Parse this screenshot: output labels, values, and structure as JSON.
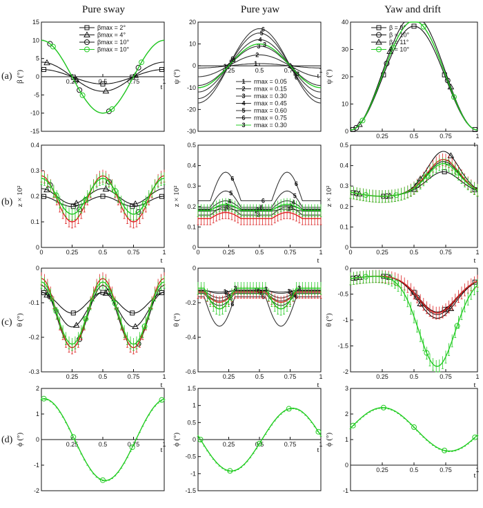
{
  "column_titles": [
    "Pure sway",
    "Pure yaw",
    "Yaw and drift"
  ],
  "row_labels": [
    "(a)",
    "(b)",
    "(c)",
    "(d)"
  ],
  "colors": {
    "black": "#111111",
    "gray": "#555555",
    "green": "#22cc22",
    "red": "#dd2222"
  },
  "chart_data": [
    {
      "id": "a1",
      "type": "line",
      "ylabel": "β (°)",
      "xlabel": "t",
      "xlim": [
        0,
        1
      ],
      "ylim": [
        -15,
        15
      ],
      "xticks": [
        0.25,
        0.5,
        0.75,
        1
      ],
      "yticks": [
        -15,
        -10,
        -5,
        0,
        5,
        10,
        15
      ],
      "legend": [
        "βmax = 2°",
        "βmax = 4°",
        "βmax = 10°",
        "βmax = 10°"
      ],
      "series": [
        {
          "name": "βmax = 2°",
          "marker": "square",
          "color": "#111111",
          "amp": 2,
          "phase": 0
        },
        {
          "name": "βmax = 4°",
          "marker": "triangle",
          "color": "#111111",
          "amp": 4,
          "phase": 0
        },
        {
          "name": "βmax = 10°",
          "marker": "circle",
          "color": "#111111",
          "amp": 10,
          "phase": 0
        },
        {
          "name": "βmax = 10°",
          "marker": "circle",
          "color": "#22cc22",
          "amp": 10,
          "phase": 0
        }
      ]
    },
    {
      "id": "a2",
      "type": "line",
      "ylabel": "ψ (°)",
      "xlabel": "t",
      "xlim": [
        0,
        1
      ],
      "ylim": [
        -30,
        20
      ],
      "xticks": [
        0.25,
        0.5,
        0.75,
        1
      ],
      "yticks": [
        -30,
        -20,
        -10,
        0,
        10,
        20
      ],
      "legend": [
        "rmax = 0.05",
        "rmax = 0.15",
        "rmax = 0.30",
        "rmax = 0.45",
        "rmax = 0.60",
        "rmax = 0.75",
        "rmax = 0.30"
      ],
      "legend_numbers": [
        "1",
        "2",
        "3",
        "4",
        "5",
        "6",
        "3"
      ],
      "series": [
        {
          "name": "rmax = 0.05",
          "label": "1",
          "color": "#333333",
          "amp": 1
        },
        {
          "name": "rmax = 0.15",
          "label": "2",
          "color": "#333333",
          "amp": 5
        },
        {
          "name": "rmax = 0.30",
          "label": "3",
          "color": "#333333",
          "amp": 9
        },
        {
          "name": "rmax = 0.45",
          "label": "4",
          "color": "#333333",
          "amp": 12
        },
        {
          "name": "rmax = 0.60",
          "label": "5",
          "color": "#333333",
          "amp": 15
        },
        {
          "name": "rmax = 0.75",
          "label": "6",
          "color": "#333333",
          "amp": 17
        },
        {
          "name": "rmax = 0.30",
          "label": "3",
          "color": "#22cc22",
          "amp": 10
        }
      ]
    },
    {
      "id": "a3",
      "type": "line",
      "ylabel": "ψ (°)",
      "xlabel": "t",
      "xlim": [
        0,
        1
      ],
      "ylim": [
        0,
        40
      ],
      "xticks": [
        0.25,
        0.5,
        0.75,
        1
      ],
      "yticks": [
        0,
        10,
        20,
        30,
        40
      ],
      "legend": [
        "β = 9°",
        "β = 10°",
        "β = 11°",
        "β = 10°"
      ],
      "series": [
        {
          "name": "β = 9°",
          "marker": "square",
          "color": "#111111",
          "amp": 19
        },
        {
          "name": "β = 10°",
          "marker": "circle",
          "color": "#111111",
          "amp": 20
        },
        {
          "name": "β = 11°",
          "marker": "triangle",
          "color": "#111111",
          "amp": 21
        },
        {
          "name": "β = 10°",
          "marker": "circle",
          "color": "#22cc22",
          "amp": 20
        }
      ]
    },
    {
      "id": "b1",
      "type": "line",
      "ylabel": "z × 10²",
      "xlabel": "t",
      "xlim": [
        0,
        1
      ],
      "ylim": [
        0,
        0.4
      ],
      "xticks": [
        0,
        0.25,
        0.5,
        0.75,
        1
      ],
      "yticks": [
        0,
        0.1,
        0.2,
        0.3,
        0.4
      ],
      "series": [
        {
          "marker": "square",
          "color": "#111111",
          "mean": 0.18,
          "amp": 0.02,
          "freq": 2
        },
        {
          "marker": "triangle",
          "color": "#111111",
          "mean": 0.2,
          "amp": 0.03,
          "freq": 2
        },
        {
          "marker": "circle",
          "color": "#111111",
          "mean": 0.2,
          "amp": 0.07,
          "freq": 2
        },
        {
          "color": "#dd2222",
          "mean": 0.19,
          "amp": 0.09,
          "freq": 2,
          "errorbars": true
        },
        {
          "marker": "circle",
          "color": "#22cc22",
          "mean": 0.2,
          "amp": 0.07,
          "freq": 2,
          "errorbars": true
        }
      ]
    },
    {
      "id": "b2",
      "type": "line",
      "ylabel": "z × 10²",
      "xlabel": "t",
      "xlim": [
        0,
        1
      ],
      "ylim": [
        0,
        0.5
      ],
      "xticks": [
        0,
        0.25,
        0.5,
        0.75,
        1
      ],
      "yticks": [
        0,
        0.1,
        0.2,
        0.3,
        0.4,
        0.5
      ],
      "series": [
        {
          "label": "1",
          "color": "#333333",
          "mean": 0.18,
          "amp": 0.01
        },
        {
          "label": "2",
          "color": "#333333",
          "mean": 0.19,
          "amp": 0.02
        },
        {
          "label": "3",
          "color": "#333333",
          "mean": 0.17,
          "amp": 0.04
        },
        {
          "label": "4",
          "color": "#333333",
          "mean": 0.2,
          "amp": 0.04
        },
        {
          "label": "5",
          "color": "#333333",
          "mean": 0.22,
          "amp": 0.08
        },
        {
          "label": "6",
          "color": "#333333",
          "mean": 0.27,
          "amp": 0.14
        },
        {
          "color": "#dd2222",
          "mean": 0.15,
          "amp": 0.03,
          "errorbars": true
        },
        {
          "color": "#22cc22",
          "mean": 0.19,
          "amp": 0.03,
          "errorbars": true
        }
      ]
    },
    {
      "id": "b3",
      "type": "line",
      "ylabel": "z × 10²",
      "xlabel": "t",
      "xlim": [
        0,
        1
      ],
      "ylim": [
        0,
        0.5
      ],
      "xticks": [
        0,
        0.25,
        0.5,
        0.75,
        1
      ],
      "yticks": [
        0,
        0.1,
        0.2,
        0.3,
        0.4,
        0.5
      ],
      "series": [
        {
          "marker": "square",
          "color": "#111111",
          "amp": 0.08
        },
        {
          "marker": "circle",
          "color": "#111111",
          "amp": 0.13
        },
        {
          "marker": "triangle",
          "color": "#111111",
          "amp": 0.18
        },
        {
          "color": "#dd2222",
          "amp": 0.14,
          "errorbars": true
        },
        {
          "marker": "circle",
          "color": "#22cc22",
          "amp": 0.12,
          "errorbars": true
        }
      ]
    },
    {
      "id": "c1",
      "type": "line",
      "ylabel": "θ (°)",
      "xlabel": "t",
      "xlim": [
        0,
        1
      ],
      "ylim": [
        -0.3,
        0
      ],
      "xticks": [
        0.25,
        0.5,
        0.75,
        1
      ],
      "yticks": [
        -0.3,
        -0.2,
        -0.1,
        0
      ],
      "series": [
        {
          "marker": "square",
          "color": "#111111",
          "mean": -0.1,
          "amp": 0.03
        },
        {
          "marker": "triangle",
          "color": "#111111",
          "mean": -0.12,
          "amp": 0.05
        },
        {
          "marker": "circle",
          "color": "#111111",
          "mean": -0.14,
          "amp": 0.09
        },
        {
          "color": "#dd2222",
          "mean": -0.13,
          "amp": 0.1,
          "errorbars": true
        },
        {
          "marker": "circle",
          "color": "#22cc22",
          "mean": -0.13,
          "amp": 0.09,
          "errorbars": true
        }
      ]
    },
    {
      "id": "c2",
      "type": "line",
      "ylabel": "θ (°)",
      "xlabel": "t",
      "xlim": [
        0,
        1
      ],
      "ylim": [
        -0.6,
        0
      ],
      "xticks": [
        0.25,
        0.5,
        0.75,
        1
      ],
      "yticks": [
        -0.6,
        -0.4,
        -0.2,
        0
      ],
      "series": [
        {
          "label": "1",
          "color": "#333333",
          "mean": -0.13,
          "amp": 0.01
        },
        {
          "label": "2",
          "color": "#333333",
          "mean": -0.13,
          "amp": 0.02
        },
        {
          "label": "3",
          "color": "#333333",
          "mean": -0.14,
          "amp": 0.04
        },
        {
          "label": "4",
          "color": "#333333",
          "mean": -0.15,
          "amp": 0.05
        },
        {
          "label": "5",
          "color": "#333333",
          "mean": -0.16,
          "amp": 0.07
        },
        {
          "label": "6",
          "color": "#333333",
          "mean": -0.2,
          "amp": 0.17
        },
        {
          "color": "#dd2222",
          "mean": -0.15,
          "amp": 0.06,
          "errorbars": true
        },
        {
          "label": "3",
          "color": "#22cc22",
          "mean": -0.14,
          "amp": 0.12,
          "errorbars": true
        }
      ]
    },
    {
      "id": "c3",
      "type": "line",
      "ylabel": "θ (°)",
      "xlabel": "t",
      "xlim": [
        0,
        1
      ],
      "ylim": [
        -2,
        0
      ],
      "xticks": [
        0.25,
        0.5,
        0.75,
        1
      ],
      "yticks": [
        -2,
        -1.5,
        -1,
        -0.5,
        0
      ],
      "series": [
        {
          "marker": "square",
          "color": "#111111",
          "depth": 0.6
        },
        {
          "marker": "circle",
          "color": "#111111",
          "depth": 0.65
        },
        {
          "marker": "triangle",
          "color": "#111111",
          "depth": 0.72
        },
        {
          "color": "#dd2222",
          "depth": 0.62,
          "errorbars": true
        },
        {
          "marker": "circle",
          "color": "#22cc22",
          "depth": 1.65,
          "errorbars": true
        }
      ]
    },
    {
      "id": "d1",
      "type": "line",
      "ylabel": "ϕ (°)",
      "xlabel": "t",
      "xlim": [
        0,
        1
      ],
      "ylim": [
        -2,
        2
      ],
      "xticks": [
        0.25,
        0.5,
        0.75,
        1
      ],
      "yticks": [
        -2,
        -1,
        0,
        1,
        2
      ],
      "series": [
        {
          "marker": "circle",
          "color": "#22cc22",
          "amp": 1.6,
          "errorbars": true
        }
      ]
    },
    {
      "id": "d2",
      "type": "line",
      "ylabel": "ϕ (°)",
      "xlabel": "t",
      "xlim": [
        0,
        1
      ],
      "ylim": [
        -1.5,
        1.5
      ],
      "xticks": [
        0.25,
        0.5,
        0.75,
        1
      ],
      "yticks": [
        -1.5,
        -1,
        -0.5,
        0,
        0.5,
        1,
        1.5
      ],
      "series": [
        {
          "marker": "circle",
          "color": "#22cc22",
          "amp": 0.92,
          "errorbars": true
        }
      ]
    },
    {
      "id": "d3",
      "type": "line",
      "ylabel": "ϕ (°)",
      "xlabel": "t",
      "xlim": [
        0,
        1
      ],
      "ylim": [
        -1,
        3
      ],
      "xticks": [
        0.25,
        0.5,
        0.75,
        1
      ],
      "yticks": [
        -1,
        0,
        1,
        2,
        3
      ],
      "series": [
        {
          "marker": "circle",
          "color": "#22cc22",
          "mean": 1.4,
          "amp": 0.85,
          "errorbars": true
        }
      ]
    }
  ]
}
